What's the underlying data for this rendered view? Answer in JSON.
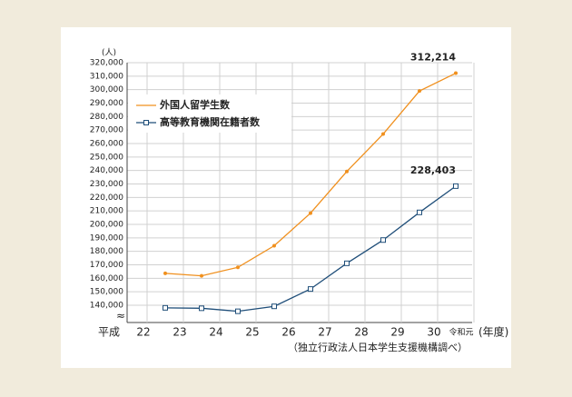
{
  "chart_data": {
    "type": "line",
    "y_unit": "(人)",
    "x_era_label": "平成",
    "x_unit": "(年度)",
    "source": "（独立行政法人日本学生支援機構調べ）",
    "categories": [
      "22",
      "23",
      "24",
      "25",
      "26",
      "27",
      "28",
      "29",
      "30",
      "令和元"
    ],
    "series": [
      {
        "name": "外国人留学生数",
        "color": "#f0901e",
        "marker": "circle",
        "values": [
          null,
          163697,
          161848,
          168145,
          184155,
          208379,
          239287,
          267042,
          298980,
          312214
        ],
        "value_labels": [
          null,
          null,
          null,
          null,
          null,
          null,
          null,
          null,
          null,
          "312,214"
        ]
      },
      {
        "name": "高等教育機関在籍者数",
        "color": "#1f4e79",
        "marker": "square",
        "values": [
          null,
          138075,
          137756,
          135519,
          139185,
          152062,
          171122,
          188384,
          208901,
          228403
        ],
        "value_labels": [
          null,
          null,
          null,
          null,
          null,
          null,
          null,
          null,
          null,
          "228,403"
        ]
      }
    ],
    "ylim": [
      140000,
      320000
    ],
    "yticks": [
      {
        "value": 140000,
        "label": "140,000"
      },
      {
        "value": 150000,
        "label": "150,000"
      },
      {
        "value": 160000,
        "label": "160,000"
      },
      {
        "value": 170000,
        "label": "170,000"
      },
      {
        "value": 180000,
        "label": "180,000"
      },
      {
        "value": 190000,
        "label": "190,000"
      },
      {
        "value": 200000,
        "label": "200,000"
      },
      {
        "value": 210000,
        "label": "210,000"
      },
      {
        "value": 220000,
        "label": "220,000"
      },
      {
        "value": 230000,
        "label": "230,000"
      },
      {
        "value": 240000,
        "label": "240,000"
      },
      {
        "value": 250000,
        "label": "250,000"
      },
      {
        "value": 260000,
        "label": "260,000"
      },
      {
        "value": 270000,
        "label": "270,000"
      },
      {
        "value": 280000,
        "label": "280,000"
      },
      {
        "value": 290000,
        "label": "290,000"
      },
      {
        "value": 300000,
        "label": "300,000"
      },
      {
        "value": 310000,
        "label": "310,000"
      },
      {
        "value": 320000,
        "label": "320,000"
      }
    ],
    "grid": true
  }
}
